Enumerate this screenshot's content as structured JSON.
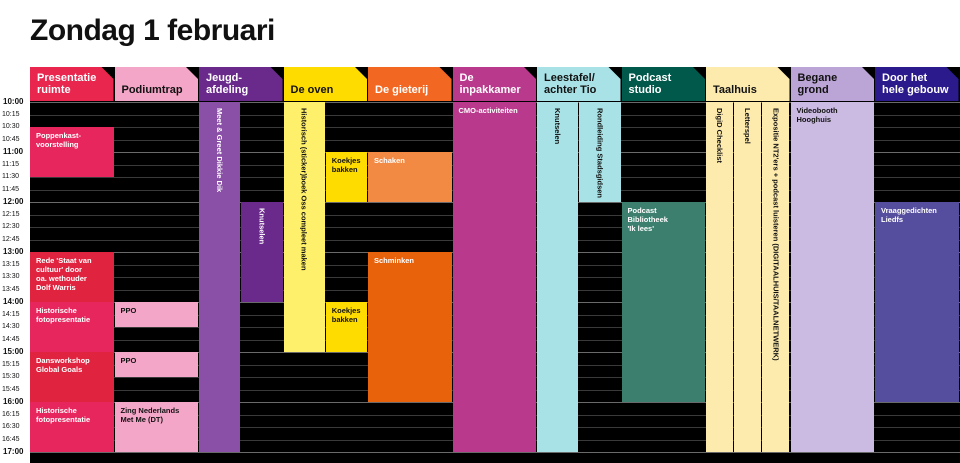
{
  "title": "Zondag 1 februari",
  "times": [
    "10:00",
    "10:15",
    "10:30",
    "10:45",
    "11:00",
    "11:15",
    "11:30",
    "11:45",
    "12:00",
    "12:15",
    "12:30",
    "12:45",
    "13:00",
    "13:15",
    "13:30",
    "13:45",
    "14:00",
    "14:15",
    "14:30",
    "14:45",
    "15:00",
    "15:15",
    "15:30",
    "15:45",
    "16:00",
    "16:15",
    "16:30",
    "16:45",
    "17:00"
  ],
  "columns": [
    {
      "line1": "Presentatie",
      "line2": "ruimte",
      "color": "#e8264e",
      "text": "#ffffff"
    },
    {
      "line1": "",
      "line2": "Podiumtrap",
      "color": "#f3a6c7",
      "text": "#111111"
    },
    {
      "line1": "Jeugd-",
      "line2": "afdeling",
      "color": "#6a2a8c",
      "text": "#ffffff"
    },
    {
      "line1": "",
      "line2": "De oven",
      "color": "#ffdc00",
      "text": "#111111"
    },
    {
      "line1": "",
      "line2": "De gieterij",
      "color": "#f26722",
      "text": "#ffffff"
    },
    {
      "line1": "De",
      "line2": "inpakkamer",
      "color": "#b93a8c",
      "text": "#ffffff"
    },
    {
      "line1": "Leestafel/",
      "line2": "achter Tio",
      "color": "#a8e2e6",
      "text": "#111111"
    },
    {
      "line1": "Podcast",
      "line2": "studio",
      "color": "#00594a",
      "text": "#ffffff"
    },
    {
      "line1": "",
      "line2": "Taalhuis",
      "color": "#fdeaad",
      "text": "#111111"
    },
    {
      "line1": "Begane",
      "line2": "grond",
      "color": "#bba4d6",
      "text": "#111111"
    },
    {
      "line1": "Door het",
      "line2": "hele gebouw",
      "color": "#2a1a8c",
      "text": "#ffffff"
    }
  ],
  "events": [
    {
      "col": 0,
      "start": 10.5,
      "end": 11.5,
      "lines": [
        "Poppenkast-",
        "voorstelling"
      ],
      "color": "#e8265e",
      "text": "#ffffff"
    },
    {
      "col": 0,
      "start": 13.0,
      "end": 14.0,
      "lines": [
        "Rede 'Staat van",
        "cultuur' door",
        "oa. wethouder",
        "Dolf Warris"
      ],
      "color": "#e0243f",
      "text": "#ffffff"
    },
    {
      "col": 0,
      "start": 14.0,
      "end": 15.0,
      "lines": [
        "Historische",
        "fotopresentatie"
      ],
      "color": "#e8265e",
      "text": "#ffffff"
    },
    {
      "col": 0,
      "start": 15.0,
      "end": 16.0,
      "lines": [
        "Dansworkshop",
        "Global Goals"
      ],
      "color": "#e0243f",
      "text": "#ffffff"
    },
    {
      "col": 0,
      "start": 16.0,
      "end": 17.0,
      "lines": [
        "Historische",
        "fotopresentatie"
      ],
      "color": "#e8265e",
      "text": "#ffffff"
    },
    {
      "col": 1,
      "start": 14.0,
      "end": 14.5,
      "lines": [
        "PPO"
      ],
      "color": "#f3a6c7",
      "text": "#111111"
    },
    {
      "col": 1,
      "start": 15.0,
      "end": 15.5,
      "lines": [
        "PPO"
      ],
      "color": "#f3a6c7",
      "text": "#111111"
    },
    {
      "col": 1,
      "start": 16.0,
      "end": 17.0,
      "lines": [
        "Zing Nederlands",
        "Met Me (DT)"
      ],
      "color": "#f3a6c7",
      "text": "#111111"
    },
    {
      "col": 2,
      "sub": 0,
      "start": 10.0,
      "end": 17.0,
      "vertical": "Meet & Greet Dikkie Dik",
      "color": "#8a4fa6",
      "text": "#ffffff"
    },
    {
      "col": 2,
      "sub": 1,
      "start": 12.0,
      "end": 14.0,
      "vertical": "Knutselen",
      "color": "#6a2a8c",
      "text": "#ffffff"
    },
    {
      "col": 3,
      "sub": 0,
      "start": 10.0,
      "end": 15.0,
      "vertical": "Historisch (sticker)boek Oss compleet maken",
      "color": "#fff06b",
      "text": "#111111"
    },
    {
      "col": 3,
      "sub": 1,
      "start": 11.0,
      "end": 12.0,
      "lines": [
        "Koekjes",
        "bakken"
      ],
      "color": "#ffdc00",
      "text": "#111111"
    },
    {
      "col": 3,
      "sub": 1,
      "start": 14.0,
      "end": 15.0,
      "lines": [
        "Koekjes",
        "bakken"
      ],
      "color": "#ffdc00",
      "text": "#111111"
    },
    {
      "col": 4,
      "start": 11.0,
      "end": 12.0,
      "lines": [
        "Schaken"
      ],
      "color": "#f28a44",
      "text": "#ffffff"
    },
    {
      "col": 4,
      "start": 13.0,
      "end": 16.0,
      "lines": [
        "Schminken"
      ],
      "color": "#e8620c",
      "text": "#ffffff"
    },
    {
      "col": 5,
      "start": 10.0,
      "end": 17.0,
      "lines": [
        "CMO-activiteiten"
      ],
      "color": "#b93a8c",
      "text": "#ffffff"
    },
    {
      "col": 6,
      "sub": 0,
      "start": 10.0,
      "end": 17.0,
      "vertical": "Knutselen",
      "color": "#a8e2e6",
      "text": "#111111"
    },
    {
      "col": 6,
      "sub": 1,
      "start": 10.0,
      "end": 12.0,
      "vertical": "Rondleiding Stadsgidsen",
      "color": "#a8e2e6",
      "text": "#111111"
    },
    {
      "col": 7,
      "start": 12.0,
      "end": 16.0,
      "lines": [
        "Podcast",
        "Bibliotheek",
        "'Ik lees'"
      ],
      "color": "#3d7f6e",
      "text": "#ffffff"
    },
    {
      "col": 8,
      "sub3": 0,
      "start": 10.0,
      "end": 17.0,
      "vertical": "DigiD Checklist",
      "color": "#fdeaad",
      "text": "#111111"
    },
    {
      "col": 8,
      "sub3": 1,
      "start": 10.0,
      "end": 17.0,
      "vertical": "Letterspel",
      "color": "#fdeaad",
      "text": "#111111"
    },
    {
      "col": 8,
      "sub3": 2,
      "start": 10.0,
      "end": 17.0,
      "vertical": "Expositie NT2'ers + podcast luisteren (DIGITAALHUIS/TAALNETWERK)",
      "color": "#fdeaad",
      "text": "#111111"
    },
    {
      "col": 9,
      "start": 10.0,
      "end": 17.0,
      "lines": [
        "Videobooth",
        "Hooghuis"
      ],
      "color": "#cbbbe2",
      "text": "#111111"
    },
    {
      "col": 10,
      "start": 12.0,
      "end": 16.0,
      "lines": [
        "Vraaggedichten",
        "Liedfs"
      ],
      "color": "#554d9e",
      "text": "#ffffff"
    }
  ]
}
